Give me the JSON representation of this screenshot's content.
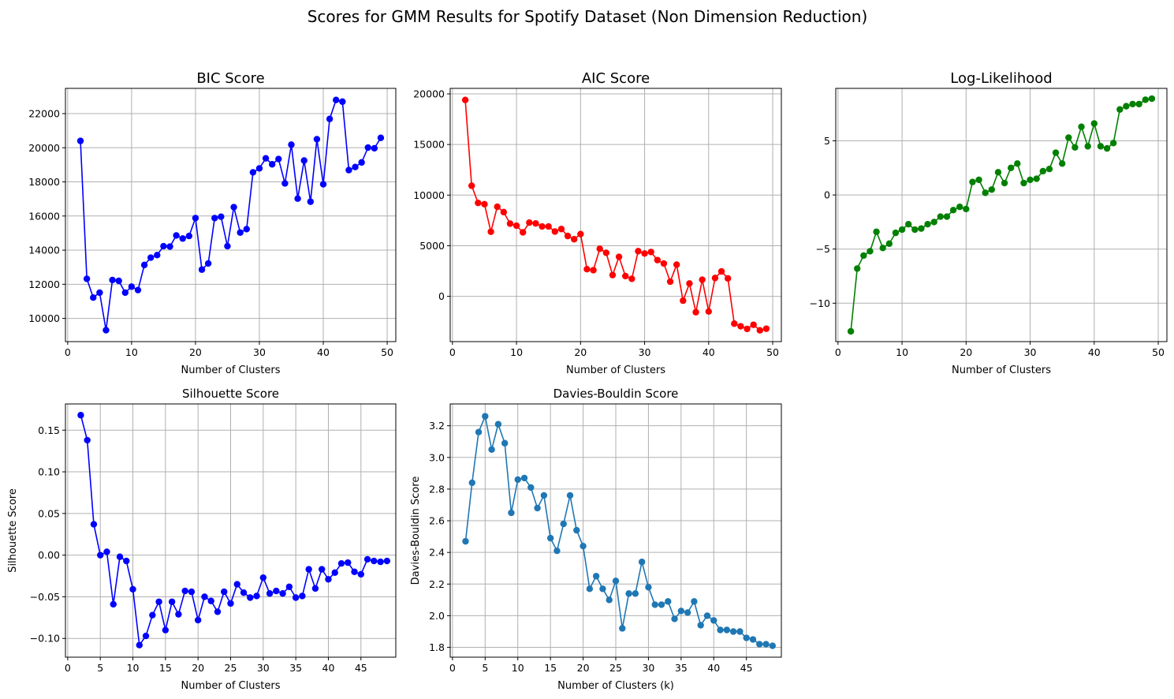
{
  "figure_title": "Scores for GMM Results for Spotify Dataset (Non Dimension Reduction)",
  "chart_data": [
    {
      "id": "bic",
      "type": "line",
      "title": "BIC Score",
      "xlabel": "Number of Clusters",
      "ylabel": "",
      "color": "#0000ff",
      "grid": true,
      "xlim": [
        -0.35,
        51.35
      ],
      "ylim": [
        8640,
        23480
      ],
      "xticks": [
        0,
        10,
        20,
        30,
        40,
        50
      ],
      "yticks": [
        10000,
        12000,
        14000,
        16000,
        18000,
        20000,
        22000
      ],
      "x": [
        2,
        3,
        4,
        5,
        6,
        7,
        8,
        9,
        10,
        11,
        12,
        13,
        14,
        15,
        16,
        17,
        18,
        19,
        20,
        21,
        22,
        23,
        24,
        25,
        26,
        27,
        28,
        29,
        30,
        31,
        32,
        33,
        34,
        35,
        36,
        37,
        38,
        39,
        40,
        41,
        42,
        43,
        44,
        45,
        46,
        47,
        48,
        49
      ],
      "values": [
        20400,
        12320,
        11220,
        11510,
        9310,
        12250,
        12200,
        11510,
        11860,
        11660,
        13130,
        13560,
        13710,
        14230,
        14210,
        14860,
        14680,
        14830,
        15880,
        12860,
        13220,
        15880,
        15960,
        14230,
        16520,
        15030,
        15230,
        18560,
        18790,
        19380,
        19030,
        19340,
        17910,
        20180,
        17020,
        19250,
        16840,
        20500,
        17860,
        21690,
        22800,
        22700,
        18690,
        18870,
        19140,
        20010,
        19970,
        20580
      ]
    },
    {
      "id": "aic",
      "type": "line",
      "title": "AIC Score",
      "xlabel": "Number of Clusters",
      "ylabel": "",
      "color": "#ff0000",
      "grid": true,
      "xlim": [
        -0.35,
        51.35
      ],
      "ylim": [
        -4475,
        20545
      ],
      "xticks": [
        0,
        10,
        20,
        30,
        40,
        50
      ],
      "yticks": [
        0,
        5000,
        10000,
        15000,
        20000
      ],
      "x": [
        2,
        3,
        4,
        5,
        6,
        7,
        8,
        9,
        10,
        11,
        12,
        13,
        14,
        15,
        16,
        17,
        18,
        19,
        20,
        21,
        22,
        23,
        24,
        25,
        26,
        27,
        28,
        29,
        30,
        31,
        32,
        33,
        34,
        35,
        36,
        37,
        38,
        39,
        40,
        41,
        42,
        43,
        44,
        45,
        46,
        47,
        48,
        49
      ],
      "values": [
        19400,
        10920,
        9230,
        9100,
        6380,
        8850,
        8320,
        7180,
        6980,
        6320,
        7280,
        7200,
        6900,
        6900,
        6400,
        6650,
        5960,
        5640,
        6150,
        2680,
        2580,
        4700,
        4300,
        2100,
        3900,
        2000,
        1730,
        4460,
        4230,
        4380,
        3580,
        3240,
        1450,
        3130,
        -430,
        1270,
        -1570,
        1640,
        -1500,
        1810,
        2460,
        1770,
        -2700,
        -2960,
        -3220,
        -2810,
        -3360,
        -3200
      ]
    },
    {
      "id": "loglik",
      "type": "line",
      "title": "Log-Likelihood",
      "xlabel": "Number of Clusters",
      "ylabel": "",
      "color": "#008000",
      "grid": true,
      "xlim": [
        -0.35,
        51.35
      ],
      "ylim": [
        -13.55,
        9.85
      ],
      "xticks": [
        0,
        10,
        20,
        30,
        40,
        50
      ],
      "yticks": [
        -10,
        -5,
        0,
        5
      ],
      "x": [
        2,
        3,
        4,
        5,
        6,
        7,
        8,
        9,
        10,
        11,
        12,
        13,
        14,
        15,
        16,
        17,
        18,
        19,
        20,
        21,
        22,
        23,
        24,
        25,
        26,
        27,
        28,
        29,
        30,
        31,
        32,
        33,
        34,
        35,
        36,
        37,
        38,
        39,
        40,
        41,
        42,
        43,
        44,
        45,
        46,
        47,
        48,
        49
      ],
      "values": [
        -12.6,
        -6.8,
        -5.6,
        -5.2,
        -3.4,
        -4.9,
        -4.5,
        -3.5,
        -3.2,
        -2.7,
        -3.2,
        -3.1,
        -2.7,
        -2.5,
        -2.0,
        -2.0,
        -1.4,
        -1.1,
        -1.3,
        1.2,
        1.4,
        0.2,
        0.5,
        2.1,
        1.1,
        2.5,
        2.9,
        1.1,
        1.4,
        1.5,
        2.2,
        2.4,
        3.9,
        2.9,
        5.3,
        4.4,
        6.3,
        4.5,
        6.6,
        4.5,
        4.3,
        4.8,
        7.9,
        8.2,
        8.4,
        8.4,
        8.8,
        8.9
      ]
    },
    {
      "id": "silhouette",
      "type": "line",
      "title": "Silhouette Score",
      "xlabel": "Number of Clusters",
      "ylabel": "Silhouette Score",
      "color": "#0000ff",
      "grid": true,
      "xlim": [
        -0.35,
        50.35
      ],
      "ylim": [
        -0.1225,
        0.1815
      ],
      "xticks": [
        0,
        5,
        10,
        15,
        20,
        25,
        30,
        35,
        40,
        45
      ],
      "yticks": [
        -0.1,
        -0.05,
        0.0,
        0.05,
        0.1,
        0.15
      ],
      "ytick_labels": [
        "−0.10",
        "−0.05",
        "0.00",
        "0.05",
        "0.10",
        "0.15"
      ],
      "x": [
        2,
        3,
        4,
        5,
        6,
        7,
        8,
        9,
        10,
        11,
        12,
        13,
        14,
        15,
        16,
        17,
        18,
        19,
        20,
        21,
        22,
        23,
        24,
        25,
        26,
        27,
        28,
        29,
        30,
        31,
        32,
        33,
        34,
        35,
        36,
        37,
        38,
        39,
        40,
        41,
        42,
        43,
        44,
        45,
        46,
        47,
        48,
        49
      ],
      "values": [
        0.168,
        0.138,
        0.037,
        0.0,
        0.004,
        -0.059,
        -0.002,
        -0.007,
        -0.041,
        -0.108,
        -0.097,
        -0.072,
        -0.056,
        -0.09,
        -0.056,
        -0.071,
        -0.043,
        -0.044,
        -0.078,
        -0.05,
        -0.055,
        -0.068,
        -0.044,
        -0.058,
        -0.035,
        -0.045,
        -0.051,
        -0.049,
        -0.027,
        -0.046,
        -0.043,
        -0.046,
        -0.038,
        -0.051,
        -0.049,
        -0.017,
        -0.04,
        -0.017,
        -0.029,
        -0.021,
        -0.01,
        -0.009,
        -0.02,
        -0.023,
        -0.005,
        -0.007,
        -0.008,
        -0.007
      ]
    },
    {
      "id": "davies_bouldin",
      "type": "line",
      "title": "Davies-Bouldin Score",
      "xlabel": "Number of Clusters (k)",
      "ylabel": "Davies-Bouldin Score",
      "color": "#1f77b4",
      "grid": true,
      "xlim": [
        -0.35,
        50.35
      ],
      "ylim": [
        1.738,
        3.338
      ],
      "xticks": [
        0,
        5,
        10,
        15,
        20,
        25,
        30,
        35,
        40,
        45
      ],
      "yticks": [
        1.8,
        2.0,
        2.2,
        2.4,
        2.6,
        2.8,
        3.0,
        3.2
      ],
      "ytick_labels": [
        "1.8",
        "2.0",
        "2.2",
        "2.4",
        "2.6",
        "2.8",
        "3.0",
        "3.2"
      ],
      "x": [
        2,
        3,
        4,
        5,
        6,
        7,
        8,
        9,
        10,
        11,
        12,
        13,
        14,
        15,
        16,
        17,
        18,
        19,
        20,
        21,
        22,
        23,
        24,
        25,
        26,
        27,
        28,
        29,
        30,
        31,
        32,
        33,
        34,
        35,
        36,
        37,
        38,
        39,
        40,
        41,
        42,
        43,
        44,
        45,
        46,
        47,
        48,
        49
      ],
      "values": [
        2.47,
        2.84,
        3.16,
        3.26,
        3.05,
        3.21,
        3.09,
        2.65,
        2.86,
        2.87,
        2.81,
        2.68,
        2.76,
        2.49,
        2.41,
        2.58,
        2.76,
        2.54,
        2.44,
        2.17,
        2.25,
        2.17,
        2.1,
        2.22,
        1.92,
        2.14,
        2.14,
        2.34,
        2.18,
        2.07,
        2.07,
        2.09,
        1.98,
        2.03,
        2.02,
        2.09,
        1.94,
        2.0,
        1.97,
        1.91,
        1.91,
        1.9,
        1.9,
        1.86,
        1.85,
        1.82,
        1.82,
        1.81
      ]
    }
  ]
}
